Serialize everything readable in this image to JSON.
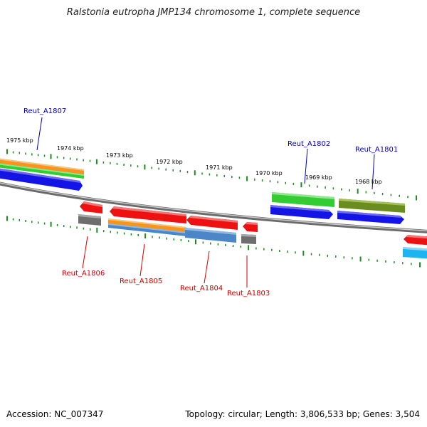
{
  "title": "Ralstonia eutropha JMP134 chromosome 1, complete sequence",
  "colors": {
    "backbone": "#8c8c8c",
    "ticks": "#1e8c1e",
    "label_forward": "#0000aa",
    "label_reverse": "#cc0000",
    "red_cds": "#ee1111",
    "blue_cds": "#1414e6",
    "green_cds": "#33cc33",
    "olive_cds": "#6b8c1f",
    "orange_cds": "#f7941d",
    "steel_cds": "#4a86c8",
    "gray_cds": "#6e6e6e",
    "cyan_cds": "#1eb4f0"
  },
  "scale": {
    "ticks": [
      {
        "label": "1975 kbp"
      },
      {
        "label": "1974 kbp"
      },
      {
        "label": "1973 kbp"
      },
      {
        "label": "1972 kbp"
      },
      {
        "label": "1971 kbp"
      },
      {
        "label": "1970 kbp"
      },
      {
        "label": "1969 kbp"
      },
      {
        "label": "1968 kbp"
      }
    ]
  },
  "gene_labels": {
    "forward": [
      {
        "name": "Reut_A1807"
      },
      {
        "name": "Reut_A1802"
      },
      {
        "name": "Reut_A1801"
      }
    ],
    "reverse": [
      {
        "name": "Reut_A1806"
      },
      {
        "name": "Reut_A1805"
      },
      {
        "name": "Reut_A1804"
      },
      {
        "name": "Reut_A1803"
      }
    ]
  },
  "footer": {
    "accession": "Accession: NC_007347",
    "summary": "Topology: circular; Length: 3,806,533 bp; Genes: 3,504"
  }
}
